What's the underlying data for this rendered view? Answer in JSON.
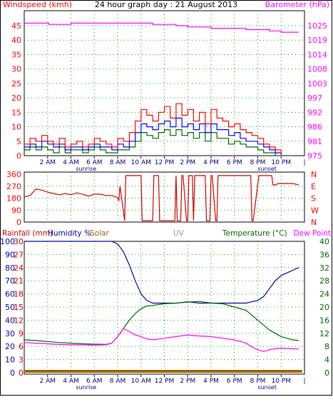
{
  "colors": {
    "wind_avg": "#0000ff",
    "wind_gust": "#ff0000",
    "wind_direction_line": "#cc0000",
    "barometer": "#ff00ff",
    "humidity": "#000099",
    "temperature": "#006600",
    "dew_point": "#ff00ff",
    "rainfall": "#996600",
    "uv": "#999999",
    "grid_dots": "#009900",
    "frame": "#000000"
  },
  "time_axis": {
    "ticks": [
      {
        "hour": 2,
        "label": "2 AM"
      },
      {
        "hour": 4,
        "label": "4 AM"
      },
      {
        "hour": 6,
        "label": "6 AM"
      },
      {
        "hour": 8,
        "label": "8 AM"
      },
      {
        "hour": 10,
        "label": "10 AM"
      },
      {
        "hour": 12,
        "label": "12 PM"
      },
      {
        "hour": 14,
        "label": "2 PM"
      },
      {
        "hour": 16,
        "label": "4 PM"
      },
      {
        "hour": 18,
        "label": "6 PM"
      },
      {
        "hour": 20,
        "label": "8 PM"
      },
      {
        "hour": 22,
        "label": "10 PM"
      }
    ],
    "sunrise_label": "sunrise",
    "sunset_label": "sunset",
    "sunrise_hour": 5.3,
    "sunset_hour": 20.8,
    "end_tick_label": "|"
  },
  "chart_data": [
    {
      "type": "line",
      "title": "24 hour graph day : 21 August 2013",
      "ylabel": "Windspeed (kmh)",
      "y2label": "Barometer (hPa)",
      "ylim": [
        0,
        45
      ],
      "y_ticks": [
        0,
        5,
        10,
        15,
        20,
        25,
        30,
        35,
        40,
        45
      ],
      "y2_tick_labels": [
        "975",
        "981",
        "986",
        "992",
        "997",
        "1003",
        "1008",
        "1014",
        "1019",
        "1025"
      ],
      "xlim": [
        0,
        24
      ],
      "grid": true,
      "series": [
        {
          "name": "Windspeed gust",
          "axis": "y",
          "x": [
            0,
            0.5,
            1,
            1.5,
            2,
            2.5,
            3,
            3.5,
            4,
            4.5,
            5,
            5.5,
            6,
            6.5,
            7,
            7.5,
            8,
            8.5,
            9,
            9.5,
            10,
            10.5,
            11,
            11.5,
            12,
            12.5,
            13,
            13.5,
            14,
            14.5,
            15,
            15.5,
            16,
            16.5,
            17,
            17.5,
            18,
            18.5,
            19,
            19.5,
            20,
            20.5,
            21,
            21.5,
            22
          ],
          "values": [
            4,
            6,
            5,
            7,
            5,
            4,
            6,
            3,
            4,
            5,
            3,
            4,
            6,
            5,
            4,
            3,
            6,
            5,
            8,
            12,
            16,
            14,
            12,
            15,
            17,
            13,
            18,
            14,
            16,
            12,
            15,
            11,
            16,
            13,
            12,
            10,
            11,
            9,
            8,
            7,
            6,
            4,
            3,
            2,
            0
          ]
        },
        {
          "name": "Windspeed average",
          "axis": "y",
          "x": [
            0,
            0.5,
            1,
            1.5,
            2,
            2.5,
            3,
            3.5,
            4,
            4.5,
            5,
            5.5,
            6,
            6.5,
            7,
            7.5,
            8,
            8.5,
            9,
            9.5,
            10,
            10.5,
            11,
            11.5,
            12,
            12.5,
            13,
            13.5,
            14,
            14.5,
            15,
            15.5,
            16,
            16.5,
            17,
            17.5,
            18,
            18.5,
            19,
            19.5,
            20,
            20.5,
            21,
            21.5,
            22
          ],
          "values": [
            3,
            4,
            3,
            5,
            4,
            3,
            4,
            2,
            3,
            3,
            2,
            3,
            4,
            3,
            3,
            2,
            4,
            3,
            5,
            8,
            11,
            10,
            9,
            11,
            12,
            10,
            13,
            10,
            11,
            9,
            11,
            8,
            11,
            9,
            9,
            7,
            8,
            6,
            5,
            5,
            4,
            3,
            2,
            1,
            0
          ]
        },
        {
          "name": "Windspeed lull",
          "axis": "y",
          "x": [
            0,
            0.5,
            1,
            1.5,
            2,
            2.5,
            3,
            3.5,
            4,
            4.5,
            5,
            5.5,
            6,
            6.5,
            7,
            7.5,
            8,
            8.5,
            9,
            9.5,
            10,
            10.5,
            11,
            11.5,
            12,
            12.5,
            13,
            13.5,
            14,
            14.5,
            15,
            15.5,
            16,
            16.5,
            17,
            17.5,
            18,
            18.5,
            19,
            19.5,
            20,
            20.5,
            21,
            21.5,
            22
          ],
          "values": [
            2,
            3,
            2,
            3,
            2,
            1,
            3,
            1,
            2,
            2,
            1,
            2,
            3,
            2,
            1,
            1,
            2,
            2,
            3,
            5,
            8,
            7,
            6,
            8,
            9,
            7,
            9,
            7,
            8,
            6,
            8,
            5,
            8,
            6,
            6,
            4,
            5,
            4,
            3,
            3,
            2,
            1,
            1,
            0,
            0
          ]
        },
        {
          "name": "Barometer",
          "axis": "y2",
          "unit": "hPa",
          "x": [
            0,
            2,
            2.1,
            4,
            6,
            8,
            10,
            11,
            12,
            13,
            14,
            15,
            16,
            17,
            18,
            19,
            20,
            21,
            22,
            23.5
          ],
          "values": [
            1026,
            1026,
            1025.5,
            1026,
            1026,
            1026,
            1026,
            1025.5,
            1025.5,
            1025,
            1024.5,
            1024.5,
            1024,
            1024,
            1024,
            1023.5,
            1023.5,
            1023,
            1022.5,
            1022.5
          ]
        }
      ]
    },
    {
      "type": "line",
      "title": "",
      "ylabel": "",
      "ylim": [
        0,
        360
      ],
      "y_ticks": [
        0,
        90,
        180,
        270,
        360
      ],
      "y2_tick_labels": [
        "N",
        "W",
        "S",
        "E",
        "N"
      ],
      "xlim": [
        0,
        24
      ],
      "grid": true,
      "series": [
        {
          "name": "Wind direction",
          "x": [
            0,
            0.5,
            1,
            1.5,
            2,
            2.5,
            3,
            3.5,
            4,
            4.5,
            5,
            5.5,
            6,
            6.5,
            7,
            7.5,
            8,
            8.1,
            8.2,
            8.6,
            8.7,
            9.9,
            10,
            10.1,
            11,
            11.1,
            11.5,
            11.6,
            12.9,
            13,
            13.1,
            13.4,
            13.5,
            13.6,
            13.9,
            14,
            14.1,
            14.4,
            14.5,
            14.6,
            15.4,
            15.5,
            15.6,
            15.9,
            16,
            16.1,
            16.4,
            16.5,
            16.6,
            17.9,
            18,
            18.1,
            19.4,
            19.5,
            19.6,
            20.1,
            20.2,
            21.2,
            21.3,
            21.6,
            21.7,
            22,
            23,
            23.5
          ],
          "values": [
            190,
            200,
            250,
            240,
            225,
            215,
            205,
            215,
            205,
            220,
            210,
            195,
            210,
            210,
            200,
            200,
            185,
            160,
            270,
            10,
            350,
            350,
            350,
            10,
            10,
            350,
            350,
            10,
            10,
            350,
            10,
            10,
            350,
            350,
            10,
            10,
            350,
            350,
            10,
            350,
            350,
            350,
            10,
            10,
            350,
            350,
            10,
            10,
            350,
            350,
            350,
            350,
            350,
            10,
            10,
            350,
            350,
            350,
            280,
            280,
            290,
            290,
            290,
            280
          ]
        }
      ]
    },
    {
      "type": "line",
      "title": "",
      "legend_labels": [
        "Rainfall (mm)",
        "Humidity %",
        "Solar",
        "UV",
        "Temperature (°C)",
        "Dew Point"
      ],
      "humidity_ticks": [
        0,
        10,
        20,
        30,
        40,
        50,
        60,
        70,
        80,
        90,
        100
      ],
      "rain_ticks": [
        0,
        3,
        6,
        9,
        12,
        15,
        18,
        21,
        24,
        27,
        30
      ],
      "temp_ticks": [
        0,
        4,
        8,
        12,
        16,
        20,
        24,
        28,
        32,
        36,
        40
      ],
      "xlim": [
        0,
        24
      ],
      "grid": true,
      "series": [
        {
          "name": "Humidity",
          "axis": "humidity",
          "x": [
            0,
            1,
            2,
            3,
            4,
            5,
            6,
            7,
            7.5,
            8,
            8.5,
            9,
            9.5,
            10,
            10.5,
            11,
            12,
            13,
            14,
            15,
            16,
            17,
            18,
            19,
            19.5,
            20,
            20.5,
            21,
            21.5,
            22,
            22.5,
            23,
            23.5
          ],
          "values": [
            100,
            100,
            100,
            100,
            100,
            100,
            100,
            100,
            100,
            98,
            92,
            82,
            70,
            60,
            55,
            53,
            53,
            53,
            54,
            53,
            53,
            53,
            53,
            53,
            54,
            55,
            58,
            64,
            70,
            74,
            76,
            78,
            80
          ]
        },
        {
          "name": "Temperature",
          "axis": "temp",
          "x": [
            0,
            1,
            2,
            3,
            4,
            5,
            6,
            7,
            7.5,
            8,
            8.5,
            9,
            9.5,
            10,
            10.5,
            11,
            12,
            13,
            14,
            15,
            16,
            17,
            18,
            19,
            19.5,
            20,
            20.5,
            21,
            21.5,
            22,
            22.5,
            23,
            23.5
          ],
          "values": [
            10,
            9.8,
            9.5,
            9.2,
            9,
            8.8,
            8.7,
            8.6,
            9,
            11,
            13.5,
            16,
            18,
            19.5,
            20.3,
            20.5,
            21,
            21.2,
            21.5,
            21.7,
            21.2,
            21,
            20,
            19,
            17.5,
            16,
            14.5,
            13,
            12,
            11,
            10.5,
            10,
            9.8
          ]
        },
        {
          "name": "Dew Point",
          "axis": "temp",
          "x": [
            0,
            1,
            2,
            3,
            4,
            5,
            6,
            7,
            7.5,
            8,
            8.5,
            9,
            9.5,
            10,
            10.5,
            11,
            12,
            13,
            14,
            15,
            16,
            17,
            18,
            19,
            19.5,
            20,
            20.5,
            21,
            21.5,
            22,
            22.5,
            23,
            23.5
          ],
          "values": [
            9.2,
            9,
            8.8,
            8.6,
            8.5,
            8.5,
            8.4,
            8.5,
            9,
            11,
            13.5,
            12.5,
            11.5,
            11,
            10.3,
            10,
            10.5,
            11,
            11.5,
            11.2,
            11,
            10.5,
            10,
            9,
            7.8,
            7,
            6.5,
            7,
            7.3,
            7.5,
            7.4,
            7.3,
            7.2
          ]
        },
        {
          "name": "Rainfall",
          "axis": "rain",
          "x": [
            0,
            23.8
          ],
          "values": [
            0,
            0
          ]
        }
      ]
    }
  ]
}
